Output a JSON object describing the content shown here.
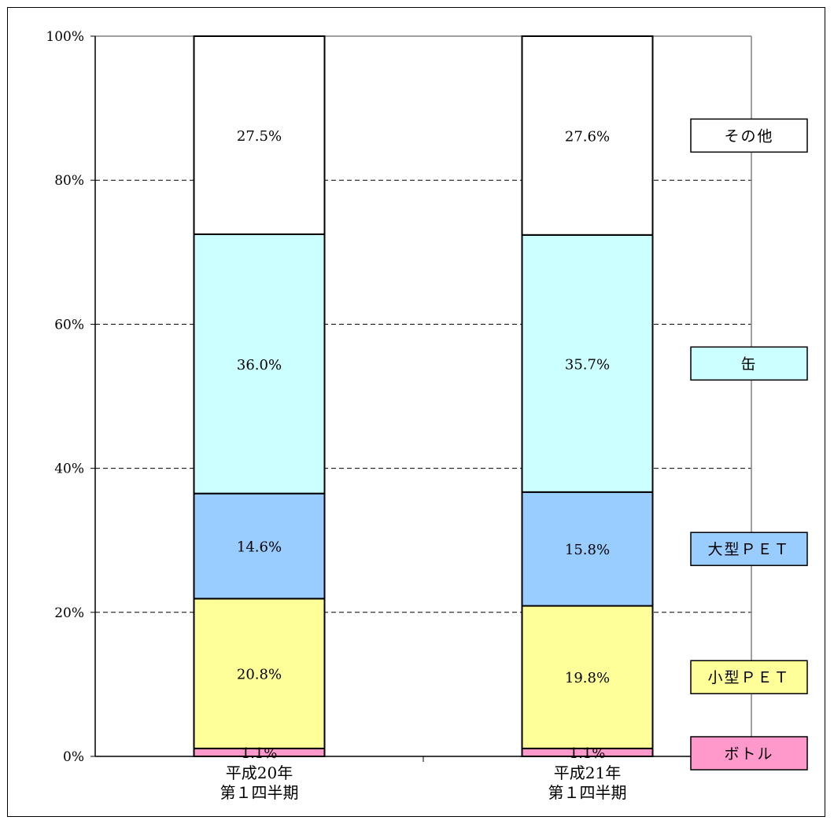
{
  "chart_data": {
    "type": "bar",
    "stacked": true,
    "title": "",
    "xlabel": "",
    "ylabel": "",
    "ylim": [
      0,
      100
    ],
    "yticks": [
      "0%",
      "20%",
      "40%",
      "60%",
      "80%",
      "100%"
    ],
    "categories": [
      {
        "line1": "平成20年",
        "line2": "第１四半期"
      },
      {
        "line1": "平成21年",
        "line2": "第１四半期"
      }
    ],
    "series": [
      {
        "name": "ボトル",
        "color": "#ff99cc",
        "values": [
          1.1,
          1.1
        ],
        "labels": [
          "1.1%",
          "1.1%"
        ]
      },
      {
        "name": "小型ＰＥＴ",
        "color": "#ffff99",
        "values": [
          20.8,
          19.8
        ],
        "labels": [
          "20.8%",
          "19.8%"
        ]
      },
      {
        "name": "大型ＰＥＴ",
        "color": "#99ccff",
        "values": [
          14.6,
          15.8
        ],
        "labels": [
          "14.6%",
          "15.8%"
        ]
      },
      {
        "name": "缶",
        "color": "#ccffff",
        "values": [
          36.0,
          35.7
        ],
        "labels": [
          "36.0%",
          "35.7%"
        ]
      },
      {
        "name": "その他",
        "color": "#ffffff",
        "values": [
          27.5,
          27.6
        ],
        "labels": [
          "27.5%",
          "27.6%"
        ]
      }
    ],
    "grid": true,
    "legend_position": "right"
  }
}
